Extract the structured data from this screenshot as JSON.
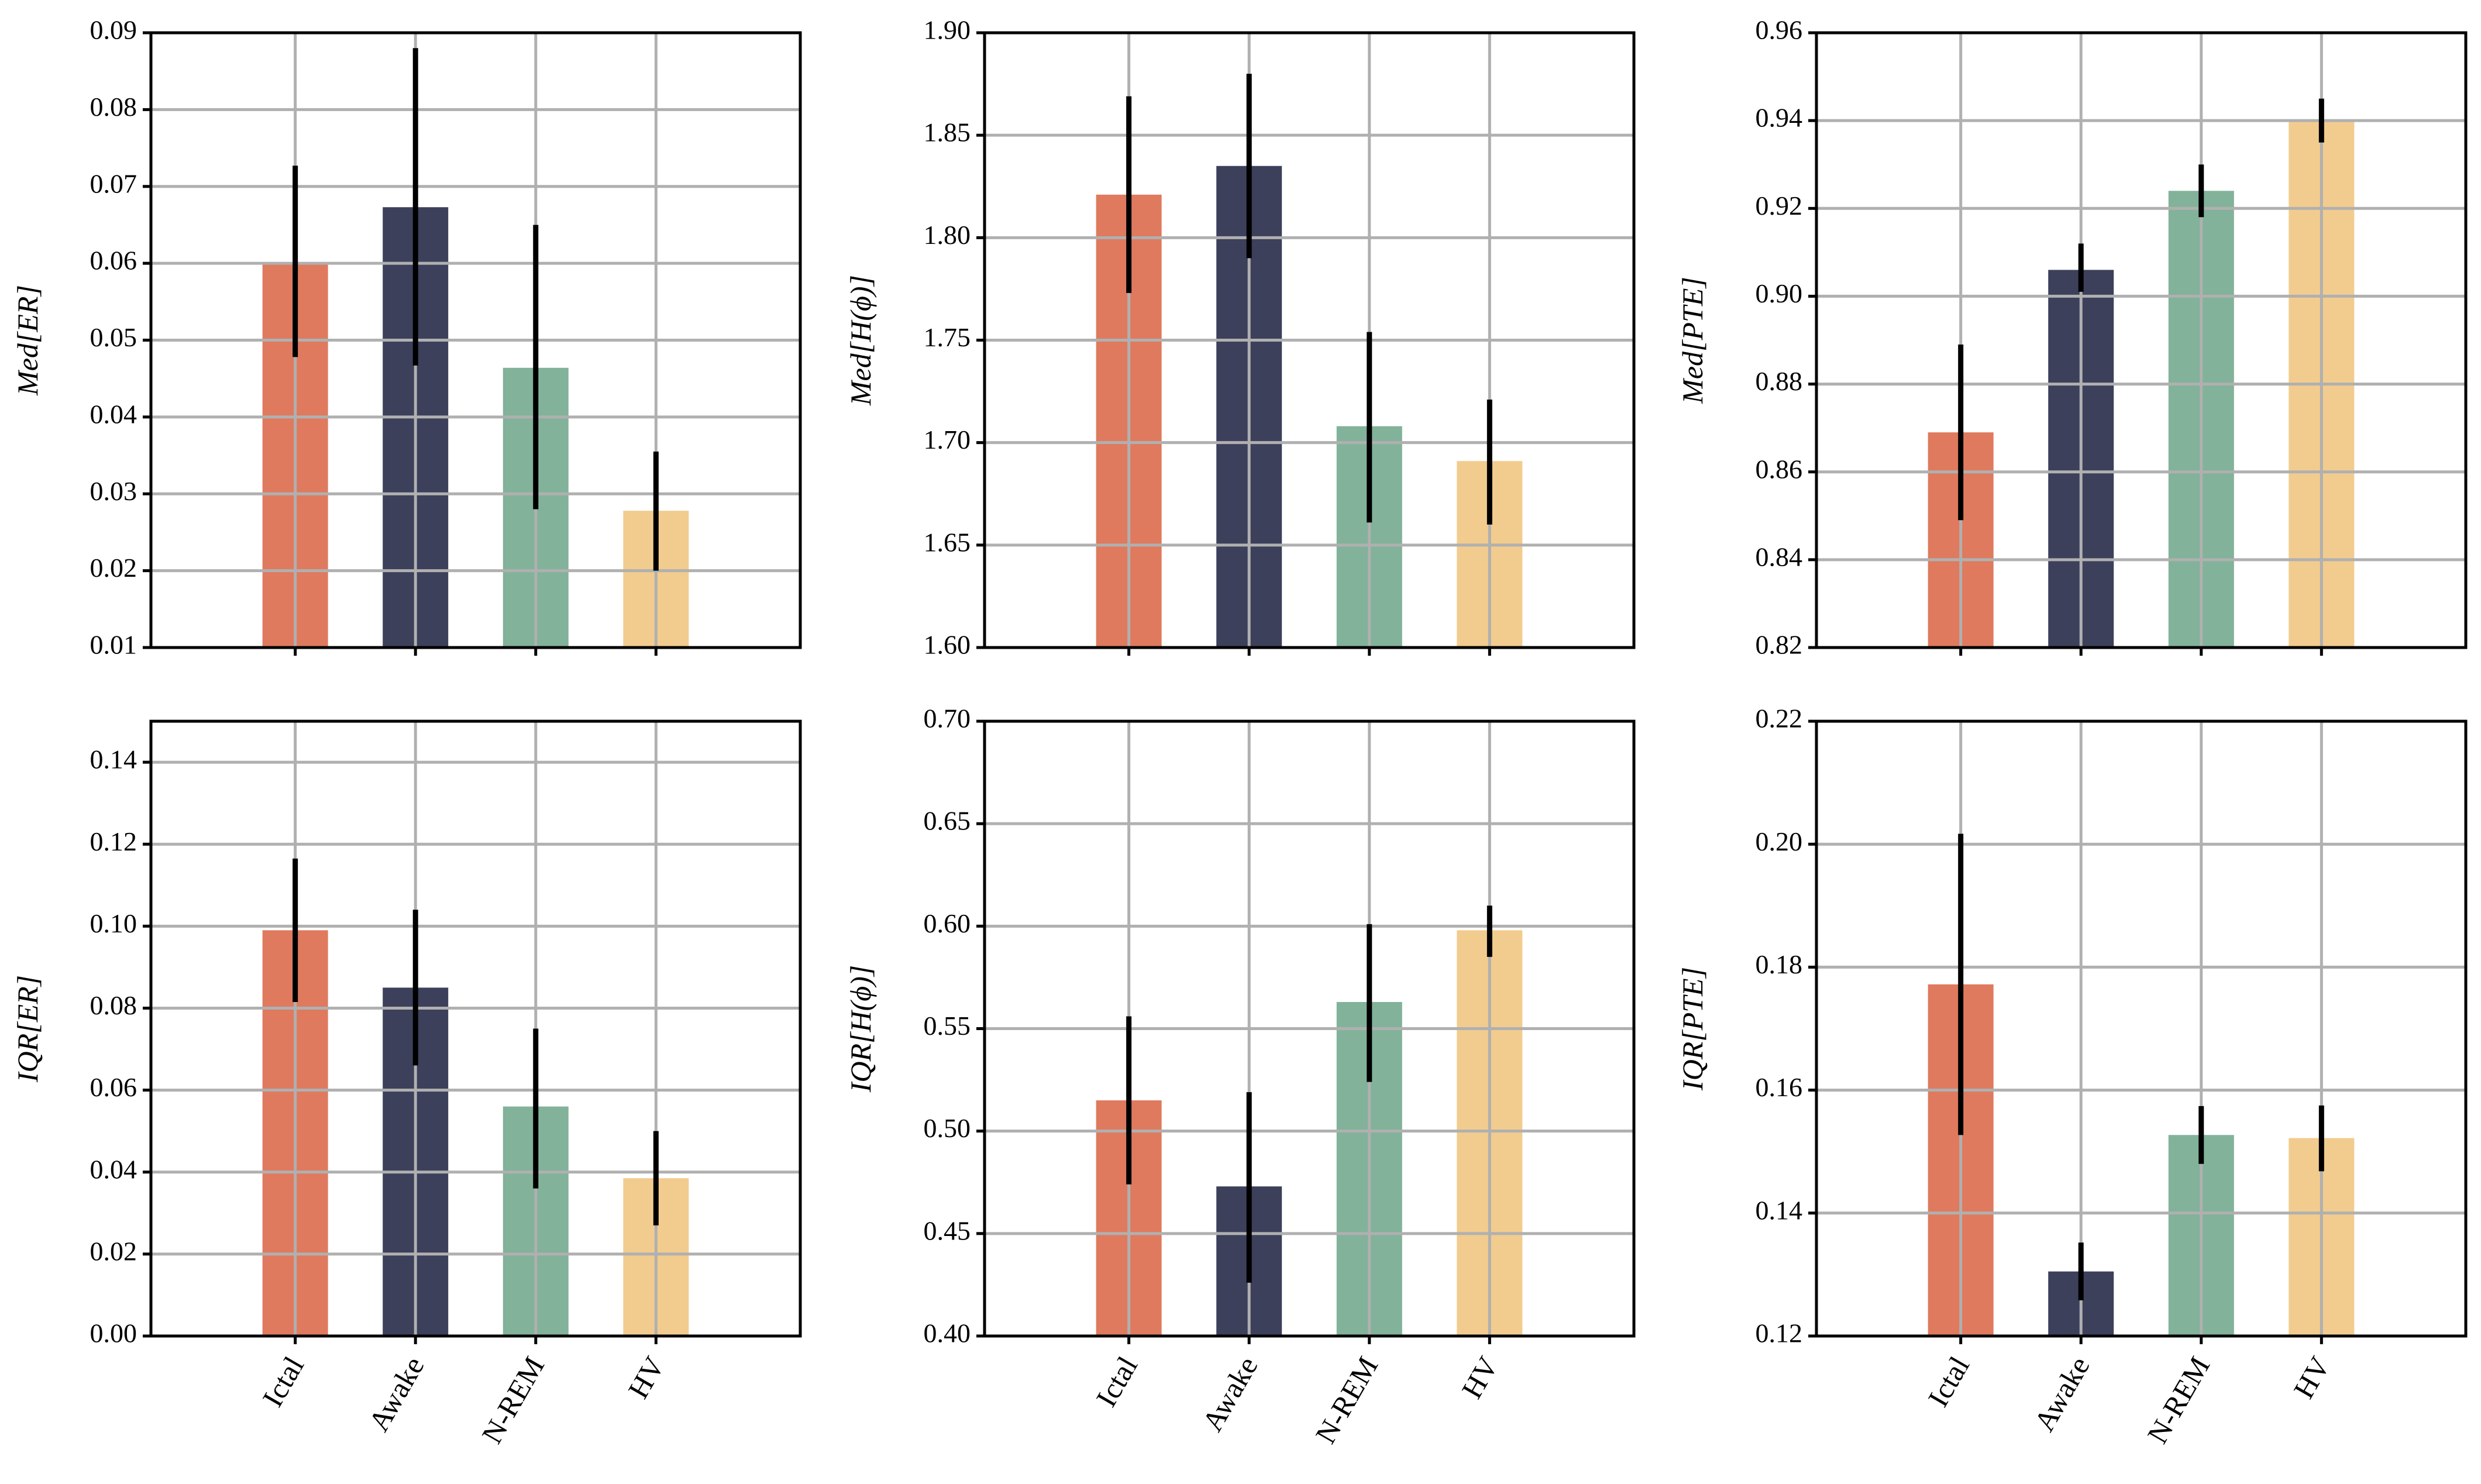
{
  "colors": {
    "Ictal": "#df7a5e",
    "Awake": "#3c405b",
    "N-REM": "#82b29a",
    "HV": "#f2cc8e",
    "grid": "#b0b0b0",
    "axis": "#000000"
  },
  "chart_data": [
    {
      "type": "bar",
      "ylabel": "Med[ER]",
      "categories": [
        "Ictal",
        "Awake",
        "N-REM",
        "HV"
      ],
      "values": [
        0.06,
        0.0673,
        0.0464,
        0.0278
      ],
      "error_low": [
        0.0478,
        0.0467,
        0.028,
        0.02
      ],
      "error_high": [
        0.0727,
        0.088,
        0.065,
        0.0355
      ],
      "ylim": [
        0.01,
        0.09
      ],
      "yticks": [
        0.01,
        0.02,
        0.03,
        0.04,
        0.05,
        0.06,
        0.07,
        0.08,
        0.09
      ],
      "ytick_labels": [
        "0.01",
        "0.02",
        "0.03",
        "0.04",
        "0.05",
        "0.06",
        "0.07",
        "0.08",
        "0.09"
      ],
      "grid": true,
      "show_xticklabels": false
    },
    {
      "type": "bar",
      "ylabel": "Med[H(ϕ)]",
      "categories": [
        "Ictal",
        "Awake",
        "N-REM",
        "HV"
      ],
      "values": [
        1.821,
        1.835,
        1.708,
        1.691
      ],
      "error_low": [
        1.773,
        1.79,
        1.661,
        1.66
      ],
      "error_high": [
        1.869,
        1.88,
        1.754,
        1.721
      ],
      "ylim": [
        1.6,
        1.9
      ],
      "yticks": [
        1.6,
        1.65,
        1.7,
        1.75,
        1.8,
        1.85,
        1.9
      ],
      "ytick_labels": [
        "1.60",
        "1.65",
        "1.70",
        "1.75",
        "1.80",
        "1.85",
        "1.90"
      ],
      "grid": true,
      "show_xticklabels": false
    },
    {
      "type": "bar",
      "ylabel": "Med[PTE]",
      "categories": [
        "Ictal",
        "Awake",
        "N-REM",
        "HV"
      ],
      "values": [
        0.869,
        0.906,
        0.924,
        0.94
      ],
      "error_low": [
        0.849,
        0.901,
        0.918,
        0.935
      ],
      "error_high": [
        0.889,
        0.912,
        0.93,
        0.945
      ],
      "ylim": [
        0.82,
        0.96
      ],
      "yticks": [
        0.82,
        0.84,
        0.86,
        0.88,
        0.9,
        0.92,
        0.94,
        0.96
      ],
      "ytick_labels": [
        "0.82",
        "0.84",
        "0.86",
        "0.88",
        "0.90",
        "0.92",
        "0.94",
        "0.96"
      ],
      "grid": true,
      "show_xticklabels": false
    },
    {
      "type": "bar",
      "ylabel": "IQR[ER]",
      "categories": [
        "Ictal",
        "Awake",
        "N-REM",
        "HV"
      ],
      "values": [
        0.099,
        0.085,
        0.056,
        0.0385
      ],
      "error_low": [
        0.0815,
        0.066,
        0.036,
        0.027
      ],
      "error_high": [
        0.1165,
        0.104,
        0.075,
        0.05
      ],
      "ylim": [
        0.0,
        0.15
      ],
      "yticks": [
        0.0,
        0.02,
        0.04,
        0.06,
        0.08,
        0.1,
        0.12,
        0.14
      ],
      "ytick_labels": [
        "0.00",
        "0.02",
        "0.04",
        "0.06",
        "0.08",
        "0.10",
        "0.12",
        "0.14"
      ],
      "grid": true,
      "show_xticklabels": true
    },
    {
      "type": "bar",
      "ylabel": "IQR[H(ϕ)]",
      "categories": [
        "Ictal",
        "Awake",
        "N-REM",
        "HV"
      ],
      "values": [
        0.515,
        0.473,
        0.563,
        0.598
      ],
      "error_low": [
        0.474,
        0.426,
        0.524,
        0.585
      ],
      "error_high": [
        0.556,
        0.519,
        0.601,
        0.61
      ],
      "ylim": [
        0.4,
        0.7
      ],
      "yticks": [
        0.4,
        0.45,
        0.5,
        0.55,
        0.6,
        0.65,
        0.7
      ],
      "ytick_labels": [
        "0.40",
        "0.45",
        "0.50",
        "0.55",
        "0.60",
        "0.65",
        "0.70"
      ],
      "grid": true,
      "show_xticklabels": true
    },
    {
      "type": "bar",
      "ylabel": "IQR[PTE]",
      "categories": [
        "Ictal",
        "Awake",
        "N-REM",
        "HV"
      ],
      "values": [
        0.1772,
        0.1305,
        0.1527,
        0.1522
      ],
      "error_low": [
        0.1527,
        0.1258,
        0.148,
        0.1468
      ],
      "error_high": [
        0.2017,
        0.1352,
        0.1574,
        0.1575
      ],
      "ylim": [
        0.12,
        0.22
      ],
      "yticks": [
        0.12,
        0.14,
        0.16,
        0.18,
        0.2,
        0.22
      ],
      "ytick_labels": [
        "0.12",
        "0.14",
        "0.16",
        "0.18",
        "0.20",
        "0.22"
      ],
      "grid": true,
      "show_xticklabels": true
    }
  ]
}
